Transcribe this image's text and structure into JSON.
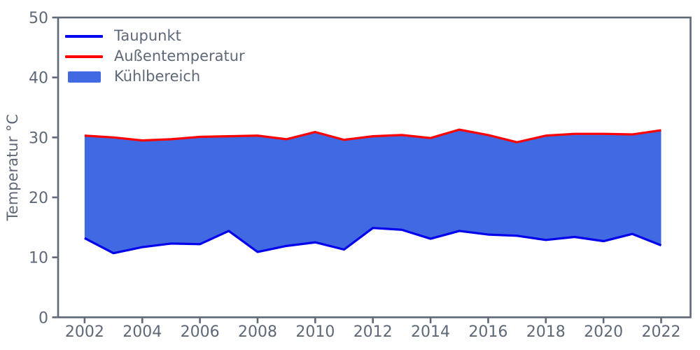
{
  "chart_data": {
    "type": "area",
    "title": "",
    "xlabel": "",
    "ylabel": "Temperatur °C",
    "x": [
      2002,
      2003,
      2004,
      2005,
      2006,
      2007,
      2008,
      2009,
      2010,
      2011,
      2012,
      2013,
      2014,
      2015,
      2016,
      2017,
      2018,
      2019,
      2020,
      2021,
      2022
    ],
    "series": [
      {
        "name": "Taupunkt",
        "type": "line",
        "color": "#0000EE",
        "values": [
          13.2,
          10.7,
          11.7,
          12.3,
          12.2,
          14.4,
          10.9,
          11.9,
          12.5,
          11.3,
          14.9,
          14.6,
          13.1,
          14.4,
          13.8,
          13.6,
          12.9,
          13.4,
          12.7,
          13.9,
          12.0
        ]
      },
      {
        "name": "Außentemperatur",
        "type": "line",
        "color": "#FF0000",
        "values": [
          30.3,
          30.0,
          29.5,
          29.7,
          30.1,
          30.2,
          30.3,
          29.7,
          30.9,
          29.6,
          30.2,
          30.4,
          29.9,
          31.3,
          30.4,
          29.2,
          30.3,
          30.6,
          30.6,
          30.5,
          31.2
        ]
      }
    ],
    "fill_between": {
      "name": "Kühlbereich",
      "color": "#4169E1",
      "lower": "Taupunkt",
      "upper": "Außentemperatur"
    },
    "xlim": [
      2001.08,
      2023.02
    ],
    "ylim": [
      0,
      50
    ],
    "xticks": [
      "2002",
      "2004",
      "2006",
      "2008",
      "2010",
      "2012",
      "2014",
      "2016",
      "2018",
      "2020",
      "2022"
    ],
    "yticks": [
      "0",
      "10",
      "20",
      "30",
      "40",
      "50"
    ],
    "grid": false,
    "axis_color": "#5E6877",
    "background_color": "#FFFFFF",
    "legend": {
      "position": "upper-left",
      "frame": false,
      "items": [
        {
          "label": "Taupunkt",
          "swatch": "line",
          "color": "#0000EE"
        },
        {
          "label": "Außentemperatur",
          "swatch": "line",
          "color": "#FF0000"
        },
        {
          "label": "Kühlbereich",
          "swatch": "patch",
          "color": "#4169E1"
        }
      ]
    }
  }
}
